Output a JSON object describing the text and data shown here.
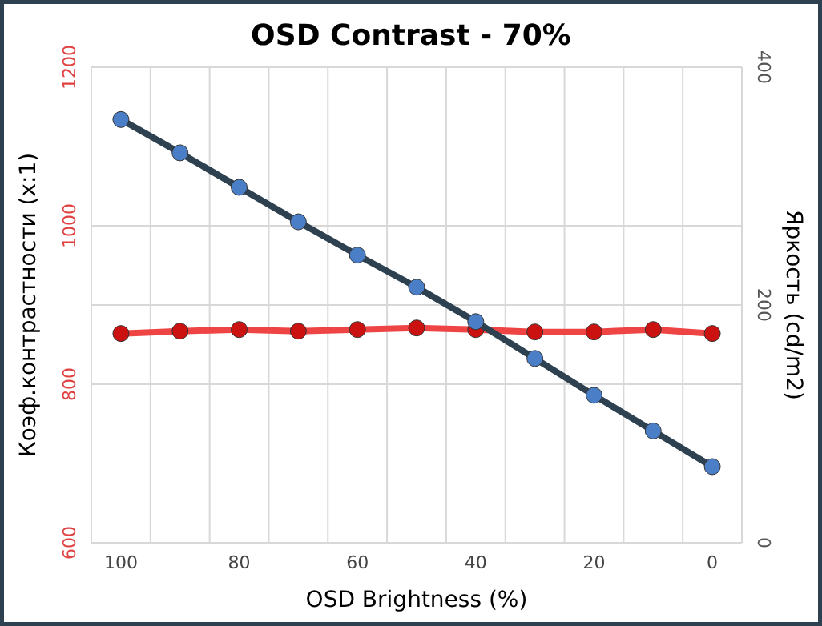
{
  "chart_data": {
    "type": "line",
    "title": "OSD Contrast - 70%",
    "xlabel": "OSD Brightness (%)",
    "ylabel": "Коэф.контрастности (x:1)",
    "y2label": "Яркость (cd/m2)",
    "categories": [
      "100",
      null,
      "80",
      null,
      "60",
      null,
      "40",
      null,
      "20",
      null,
      "0"
    ],
    "series": [
      {
        "color": "#ee4444",
        "values": [
          864,
          867,
          869,
          867,
          869,
          871,
          869,
          866,
          866,
          869,
          864
        ]
      },
      {
        "color": "#2e4150",
        "axis": "y2",
        "values": [
          356,
          328,
          299,
          270,
          242,
          215,
          186,
          155,
          124,
          94,
          64
        ]
      }
    ],
    "ylim": [
      600,
      1200
    ],
    "yticks": [
      600,
      800,
      1000,
      1200
    ],
    "y2lim": [
      0,
      400
    ],
    "y2ticks": [
      0,
      200,
      400
    ],
    "grid": true,
    "marker": "circle",
    "line_style": "solid"
  }
}
